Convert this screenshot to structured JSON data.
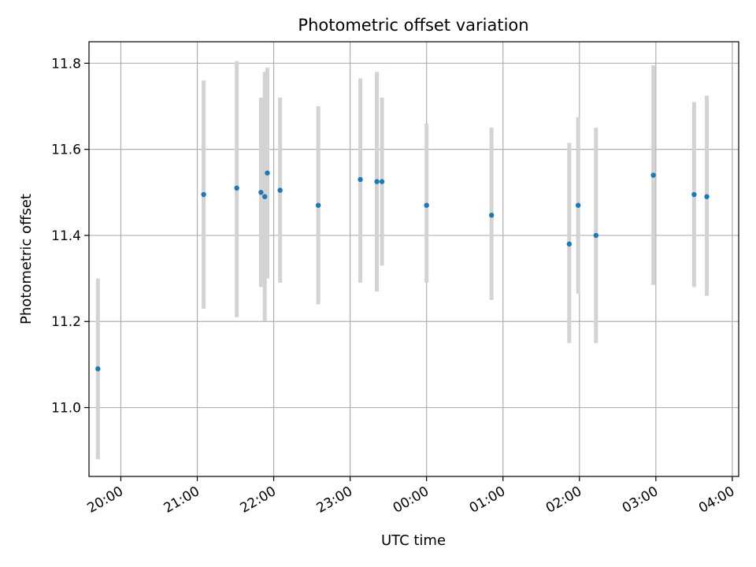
{
  "chart_data": {
    "type": "scatter",
    "title": "Photometric offset variation",
    "xlabel": "UTC time",
    "ylabel": "Photometric offset",
    "x_unit": "UTC time (HH:MM), night spanning midnight",
    "xlim": [
      "19:35",
      "04:05"
    ],
    "ylim": [
      10.84,
      11.85
    ],
    "x_ticks": [
      "20:00",
      "21:00",
      "22:00",
      "23:00",
      "00:00",
      "01:00",
      "02:00",
      "03:00",
      "04:00"
    ],
    "y_ticks": [
      11.0,
      11.2,
      11.4,
      11.6,
      11.8
    ],
    "y_tick_labels": [
      "11.0",
      "11.2",
      "11.4",
      "11.6",
      "11.8"
    ],
    "grid": true,
    "error_bars": true,
    "colors": {
      "marker": "#1f77b4",
      "error_bar": "#d3d3d3",
      "grid": "#b0b0b0",
      "axes": "#000000"
    },
    "points": [
      {
        "x": "19:42",
        "y": 11.09,
        "err_low": 10.88,
        "err_high": 11.3
      },
      {
        "x": "21:05",
        "y": 11.495,
        "err_low": 11.23,
        "err_high": 11.76
      },
      {
        "x": "21:31",
        "y": 11.51,
        "err_low": 11.21,
        "err_high": 11.805
      },
      {
        "x": "21:50",
        "y": 11.5,
        "err_low": 11.28,
        "err_high": 11.72
      },
      {
        "x": "21:53",
        "y": 11.49,
        "err_low": 11.2,
        "err_high": 11.78
      },
      {
        "x": "21:55",
        "y": 11.545,
        "err_low": 11.3,
        "err_high": 11.79
      },
      {
        "x": "22:05",
        "y": 11.505,
        "err_low": 11.29,
        "err_high": 11.72
      },
      {
        "x": "22:35",
        "y": 11.47,
        "err_low": 11.24,
        "err_high": 11.7
      },
      {
        "x": "23:08",
        "y": 11.53,
        "err_low": 11.29,
        "err_high": 11.765
      },
      {
        "x": "23:21",
        "y": 11.525,
        "err_low": 11.27,
        "err_high": 11.78
      },
      {
        "x": "23:25",
        "y": 11.525,
        "err_low": 11.33,
        "err_high": 11.72
      },
      {
        "x": "00:00",
        "y": 11.47,
        "err_low": 11.29,
        "err_high": 11.66
      },
      {
        "x": "00:51",
        "y": 11.447,
        "err_low": 11.25,
        "err_high": 11.65
      },
      {
        "x": "01:52",
        "y": 11.38,
        "err_low": 11.15,
        "err_high": 11.615
      },
      {
        "x": "01:59",
        "y": 11.47,
        "err_low": 11.265,
        "err_high": 11.675
      },
      {
        "x": "02:13",
        "y": 11.4,
        "err_low": 11.15,
        "err_high": 11.65
      },
      {
        "x": "02:58",
        "y": 11.54,
        "err_low": 11.285,
        "err_high": 11.795
      },
      {
        "x": "03:30",
        "y": 11.495,
        "err_low": 11.28,
        "err_high": 11.71
      },
      {
        "x": "03:40",
        "y": 11.49,
        "err_low": 11.26,
        "err_high": 11.725
      }
    ]
  }
}
